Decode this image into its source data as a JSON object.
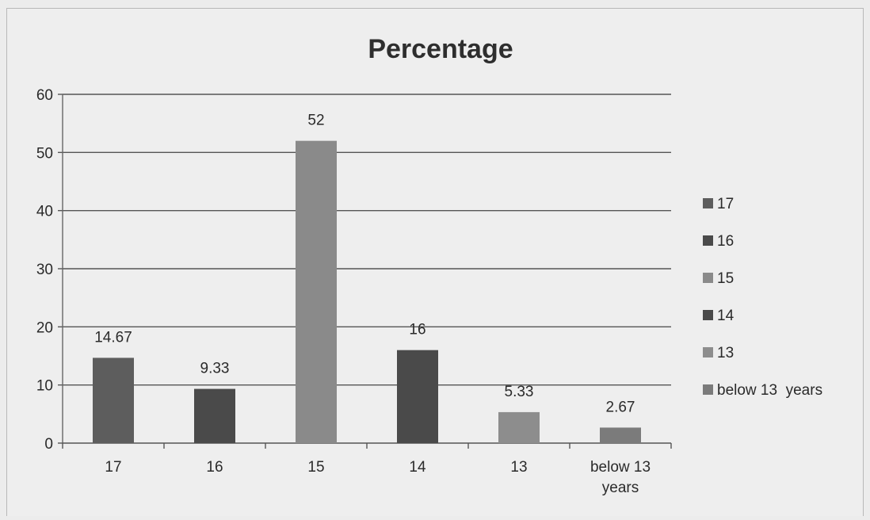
{
  "chart_data": {
    "type": "bar",
    "title": "Percentage",
    "categories": [
      "17",
      "16",
      "15",
      "14",
      "13",
      "below 13 years"
    ],
    "category_tick_lines": [
      [
        "17"
      ],
      [
        "16"
      ],
      [
        "15"
      ],
      [
        "14"
      ],
      [
        "13"
      ],
      [
        "below 13",
        "years"
      ]
    ],
    "values": [
      14.67,
      9.33,
      52,
      16,
      5.33,
      2.67
    ],
    "data_labels": [
      "14.67",
      "9.33",
      "52",
      "16",
      "5.33",
      "2.67"
    ],
    "colors": [
      "#5d5d5d",
      "#4a4a4a",
      "#8a8a8a",
      "#4a4a4a",
      "#8d8d8d",
      "#7b7b7b"
    ],
    "ylim": [
      0,
      60
    ],
    "yticks": [
      0,
      10,
      20,
      30,
      40,
      50,
      60
    ],
    "grid": true,
    "legend_position": "right",
    "legend": [
      "17",
      "16",
      "15",
      "14",
      "13",
      "below 13  years"
    ],
    "xlabel": "",
    "ylabel": ""
  }
}
